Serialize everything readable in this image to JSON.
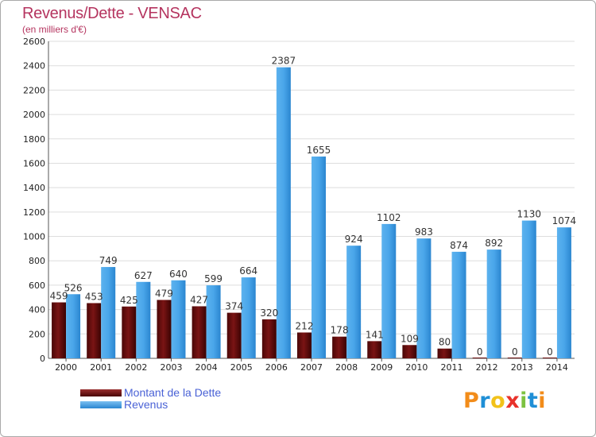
{
  "header": {
    "title": "Revenus/Dette - VENSAC",
    "subtitle": "(en milliers d'€)"
  },
  "legend": {
    "debt_label": "Montant de la Dette",
    "revenue_label": "Revenus"
  },
  "logo": {
    "text": "Proxiti",
    "letters": [
      "P",
      "r",
      "o",
      "x",
      "i",
      "t",
      "i"
    ],
    "colors": [
      "#f28c1a",
      "#1f8fd6",
      "#f2c21a",
      "#e8322b",
      "#7cc242",
      "#1f8fd6",
      "#f28c1a"
    ]
  },
  "colors": {
    "title": "#b5345f",
    "debt": "#6b0d0d",
    "revenue": "#3e9de6",
    "grid": "#dddddd",
    "legend_text": "#4a62d6"
  },
  "chart_data": {
    "type": "bar",
    "title": "Revenus/Dette - VENSAC",
    "subtitle": "(en milliers d'€)",
    "categories": [
      "2000",
      "2001",
      "2002",
      "2003",
      "2004",
      "2005",
      "2006",
      "2007",
      "2008",
      "2009",
      "2010",
      "2011",
      "2012",
      "2013",
      "2014"
    ],
    "series": [
      {
        "name": "Montant de la Dette",
        "values": [
          459,
          453,
          425,
          479,
          427,
          374,
          320,
          212,
          178,
          141,
          109,
          80,
          0,
          0,
          0
        ]
      },
      {
        "name": "Revenus",
        "values": [
          526,
          749,
          627,
          640,
          599,
          664,
          2387,
          1655,
          924,
          1102,
          983,
          874,
          892,
          1130,
          1074
        ]
      }
    ],
    "data_labels": [
      [
        "459",
        "453",
        "425",
        "479",
        "427",
        "374",
        "320",
        "212",
        "178",
        "141",
        "109",
        "80",
        "0",
        "0",
        "0"
      ],
      [
        "526",
        "749",
        "627",
        "640",
        "599",
        "664",
        "2387",
        "1655",
        "924",
        "1102",
        "983",
        "874",
        "892",
        "1130",
        "1074"
      ]
    ],
    "ylim": [
      0,
      2600
    ],
    "yticks": [
      0,
      200,
      400,
      600,
      800,
      1000,
      1200,
      1400,
      1600,
      1800,
      2000,
      2200,
      2400,
      2600
    ],
    "grid": true,
    "legend_position": "bottom-left"
  }
}
